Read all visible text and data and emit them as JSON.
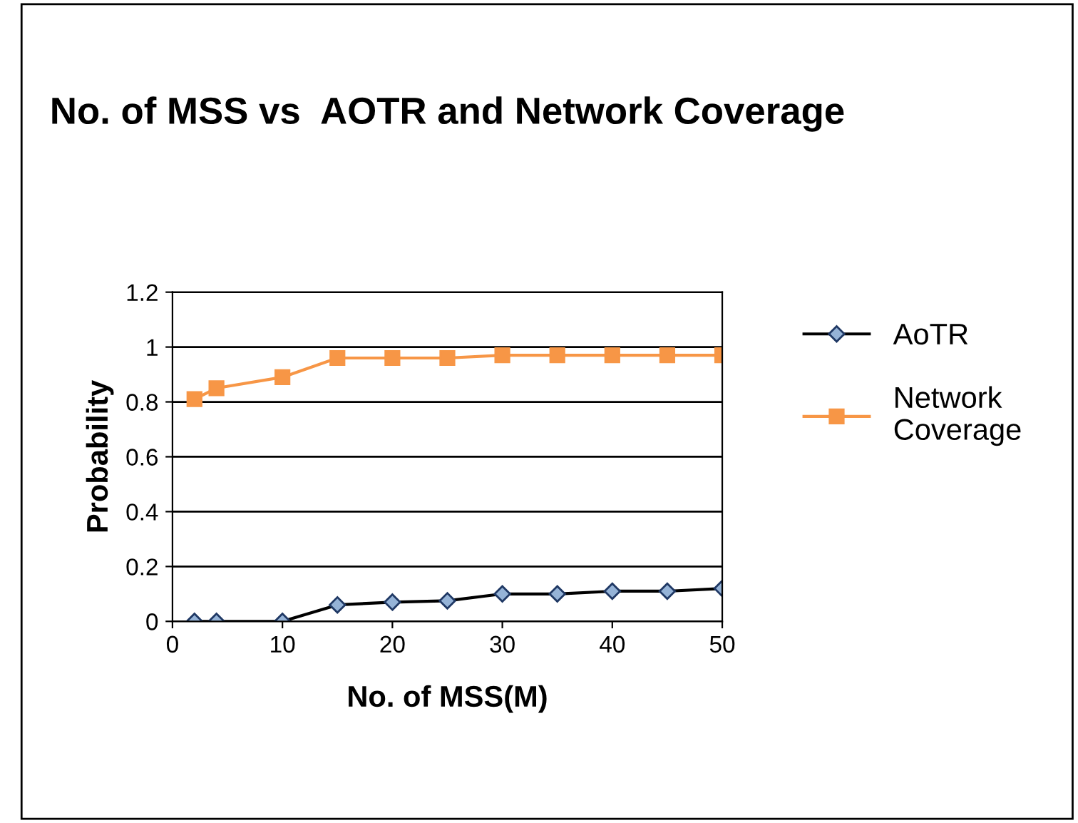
{
  "chart_data": {
    "type": "line",
    "title": "No. of MSS vs  AOTR and Network Coverage",
    "xlabel": "No. of MSS(M)",
    "ylabel": "Probability",
    "x": [
      2,
      4,
      10,
      15,
      20,
      25,
      30,
      35,
      40,
      45,
      50
    ],
    "series": [
      {
        "name": "AoTR",
        "color": "#000000",
        "marker": "diamond",
        "values": [
          0,
          0,
          0,
          0.06,
          0.07,
          0.075,
          0.1,
          0.1,
          0.11,
          0.11,
          0.12
        ]
      },
      {
        "name": "Network Coverage",
        "color": "#f79646",
        "marker": "square",
        "values": [
          0.81,
          0.85,
          0.89,
          0.96,
          0.96,
          0.96,
          0.97,
          0.97,
          0.97,
          0.97,
          0.97
        ]
      }
    ],
    "xlim": [
      0,
      50
    ],
    "xticks": [
      0,
      10,
      20,
      30,
      40,
      50
    ],
    "ylim": [
      0,
      1.2
    ],
    "yticks": [
      0,
      0.2,
      0.4,
      0.6,
      0.8,
      1,
      1.2
    ],
    "grid": "y",
    "legend": "right"
  }
}
